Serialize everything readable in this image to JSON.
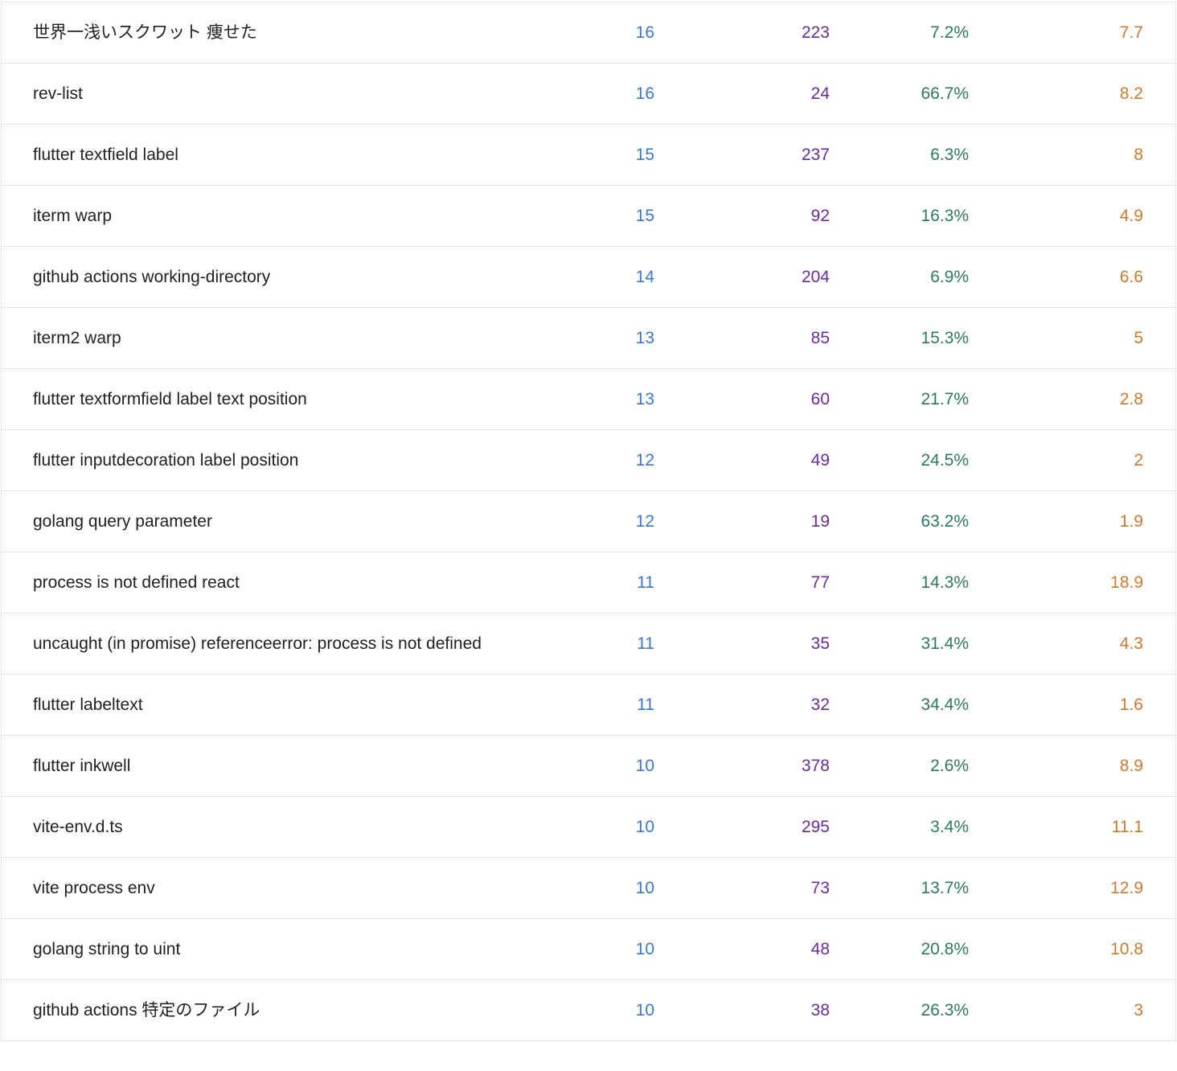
{
  "table": {
    "rows": [
      [
        "世界一浅いスクワット 痩せた",
        16,
        223,
        "7.2%",
        7.7
      ],
      [
        "rev-list",
        16,
        24,
        "66.7%",
        8.2
      ],
      [
        "flutter textfield label",
        15,
        237,
        "6.3%",
        8
      ],
      [
        "iterm warp",
        15,
        92,
        "16.3%",
        4.9
      ],
      [
        "github actions working-directory",
        14,
        204,
        "6.9%",
        6.6
      ],
      [
        "iterm2 warp",
        13,
        85,
        "15.3%",
        5
      ],
      [
        "flutter textformfield label text position",
        13,
        60,
        "21.7%",
        2.8
      ],
      [
        "flutter inputdecoration label position",
        12,
        49,
        "24.5%",
        2
      ],
      [
        "golang query parameter",
        12,
        19,
        "63.2%",
        1.9
      ],
      [
        "process is not defined react",
        11,
        77,
        "14.3%",
        18.9
      ],
      [
        "uncaught (in promise) referenceerror: process is not defined",
        11,
        35,
        "31.4%",
        4.3
      ],
      [
        "flutter labeltext",
        11,
        32,
        "34.4%",
        1.6
      ],
      [
        "flutter inkwell",
        10,
        378,
        "2.6%",
        8.9
      ],
      [
        "vite-env.d.ts",
        10,
        295,
        "3.4%",
        11.1
      ],
      [
        "vite process env",
        10,
        73,
        "13.7%",
        12.9
      ],
      [
        "golang string to uint",
        10,
        48,
        "20.8%",
        10.8
      ],
      [
        "github actions 特定のファイル",
        10,
        38,
        "26.3%",
        3
      ]
    ]
  }
}
